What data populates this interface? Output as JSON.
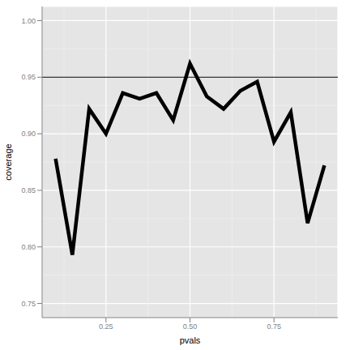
{
  "chart_data": {
    "type": "line",
    "x_label": "pvals",
    "y_label": "coverage",
    "x": [
      0.1,
      0.15,
      0.2,
      0.25,
      0.3,
      0.35,
      0.4,
      0.45,
      0.5,
      0.55,
      0.6,
      0.65,
      0.7,
      0.75,
      0.8,
      0.85,
      0.9
    ],
    "values": [
      0.878,
      0.793,
      0.922,
      0.9,
      0.936,
      0.931,
      0.936,
      0.912,
      0.962,
      0.933,
      0.922,
      0.938,
      0.946,
      0.893,
      0.919,
      0.821,
      0.872
    ],
    "color": "#000000",
    "hline": 0.95,
    "xlim": [
      0.06,
      0.94
    ],
    "xticks": [
      0.25,
      {
        "value": 0.5,
        "label": "0.50"
      },
      0.75
    ],
    "ylim": [
      0.7375,
      1.0125
    ],
    "yticks": [
      0.75,
      {
        "value": 0.8,
        "label": "0.80"
      },
      0.85,
      {
        "value": 0.9,
        "label": "0.90"
      },
      0.95,
      {
        "value": 1,
        "label": "1.00"
      }
    ],
    "grid": true
  }
}
